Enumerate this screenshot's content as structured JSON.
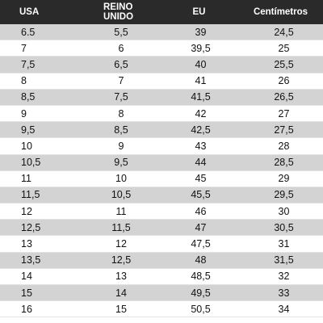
{
  "table": {
    "headers": {
      "usa": "USA",
      "uk": "REINO UNIDO",
      "eu": "EU",
      "cm": "Centímetros"
    },
    "rows": [
      {
        "usa": "6.5",
        "uk": "5,5",
        "eu": "39",
        "cm": "24,5"
      },
      {
        "usa": "7",
        "uk": "6",
        "eu": "39,5",
        "cm": "25"
      },
      {
        "usa": "7,5",
        "uk": "6,5",
        "eu": "40",
        "cm": "25,5"
      },
      {
        "usa": "8",
        "uk": "7",
        "eu": "41",
        "cm": "26"
      },
      {
        "usa": "8,5",
        "uk": "7,5",
        "eu": "41,5",
        "cm": "26,5"
      },
      {
        "usa": "9",
        "uk": "8",
        "eu": "42",
        "cm": "27"
      },
      {
        "usa": "9,5",
        "uk": "8,5",
        "eu": "42,5",
        "cm": "27,5"
      },
      {
        "usa": "10",
        "uk": "9",
        "eu": "43",
        "cm": "28"
      },
      {
        "usa": "10,5",
        "uk": "9,5",
        "eu": "44",
        "cm": "28,5"
      },
      {
        "usa": "11",
        "uk": "10",
        "eu": "45",
        "cm": "29"
      },
      {
        "usa": "11,5",
        "uk": "10,5",
        "eu": "45,5",
        "cm": "29,5"
      },
      {
        "usa": "12",
        "uk": "11",
        "eu": "46",
        "cm": "30"
      },
      {
        "usa": "12,5",
        "uk": "11,5",
        "eu": "47",
        "cm": "30,5"
      },
      {
        "usa": "13",
        "uk": "12",
        "eu": "47,5",
        "cm": "31"
      },
      {
        "usa": "13,5",
        "uk": "12,5",
        "eu": "48",
        "cm": "31,5"
      },
      {
        "usa": "14",
        "uk": "13",
        "eu": "48,5",
        "cm": "32"
      },
      {
        "usa": "15",
        "uk": "14",
        "eu": "49,5",
        "cm": "33"
      },
      {
        "usa": "16",
        "uk": "15",
        "eu": "50,5",
        "cm": "34"
      }
    ],
    "colors": {
      "header_bg": "#2a2a2a",
      "header_text": "#ffffff",
      "shaded_row": "#d3d3d3",
      "plain_row": "#ffffff"
    }
  }
}
